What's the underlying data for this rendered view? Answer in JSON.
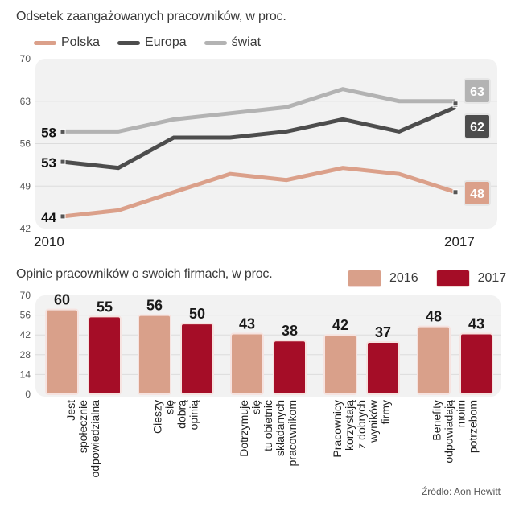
{
  "chart_data": [
    {
      "type": "line",
      "title": "Odsetek zaangażowanych pracowników, w proc.",
      "x": [
        2010,
        2011,
        2012,
        2013,
        2014,
        2015,
        2016,
        2017
      ],
      "x_tick_labels": [
        "2010",
        "2017"
      ],
      "ylim": [
        42,
        70
      ],
      "y_ticks": [
        "70",
        "63",
        "56",
        "49",
        "42"
      ],
      "grid": true,
      "legend_position": "top-left",
      "series": [
        {
          "name": "Polska",
          "color": "#dba08a",
          "values": [
            44,
            45,
            48,
            51,
            50,
            52,
            51,
            48
          ],
          "start_label": "44",
          "end_label": "48"
        },
        {
          "name": "Europa",
          "color": "#4d4d4d",
          "values": [
            53,
            52,
            57,
            57,
            58,
            60,
            58,
            62
          ],
          "start_label": "53",
          "end_label": "62"
        },
        {
          "name": "świat",
          "color": "#b3b3b3",
          "values": [
            58,
            58,
            60,
            61,
            62,
            65,
            63,
            63
          ],
          "start_label": "58",
          "end_label": "63"
        }
      ]
    },
    {
      "type": "bar",
      "title": "Opinie  pracowników o swoich firmach, w proc.",
      "ylim": [
        0,
        70
      ],
      "y_ticks": [
        "70",
        "56",
        "42",
        "28",
        "14",
        "0"
      ],
      "grid": true,
      "legend_position": "top-right",
      "categories": [
        [
          "Jest",
          "społecznie",
          "odpowiedzialna"
        ],
        [
          "Cieszy",
          "się",
          "dobrą",
          "opinią"
        ],
        [
          "Dotrzymuje",
          "się",
          "tu obietnic",
          "składanych",
          "pracownikom"
        ],
        [
          "Pracownicy",
          "korzystają",
          "z dobrych",
          "wyników",
          "firmy"
        ],
        [
          "Benefity",
          "odpowiadają",
          "moim",
          "potrzebom"
        ]
      ],
      "series": [
        {
          "name": "2016",
          "color": "#d9a08a",
          "values": [
            60,
            56,
            43,
            42,
            48
          ]
        },
        {
          "name": "2017",
          "color": "#a50d27",
          "values": [
            55,
            50,
            38,
            37,
            43
          ]
        }
      ]
    }
  ],
  "source": "Źródło: Aon Hewitt"
}
